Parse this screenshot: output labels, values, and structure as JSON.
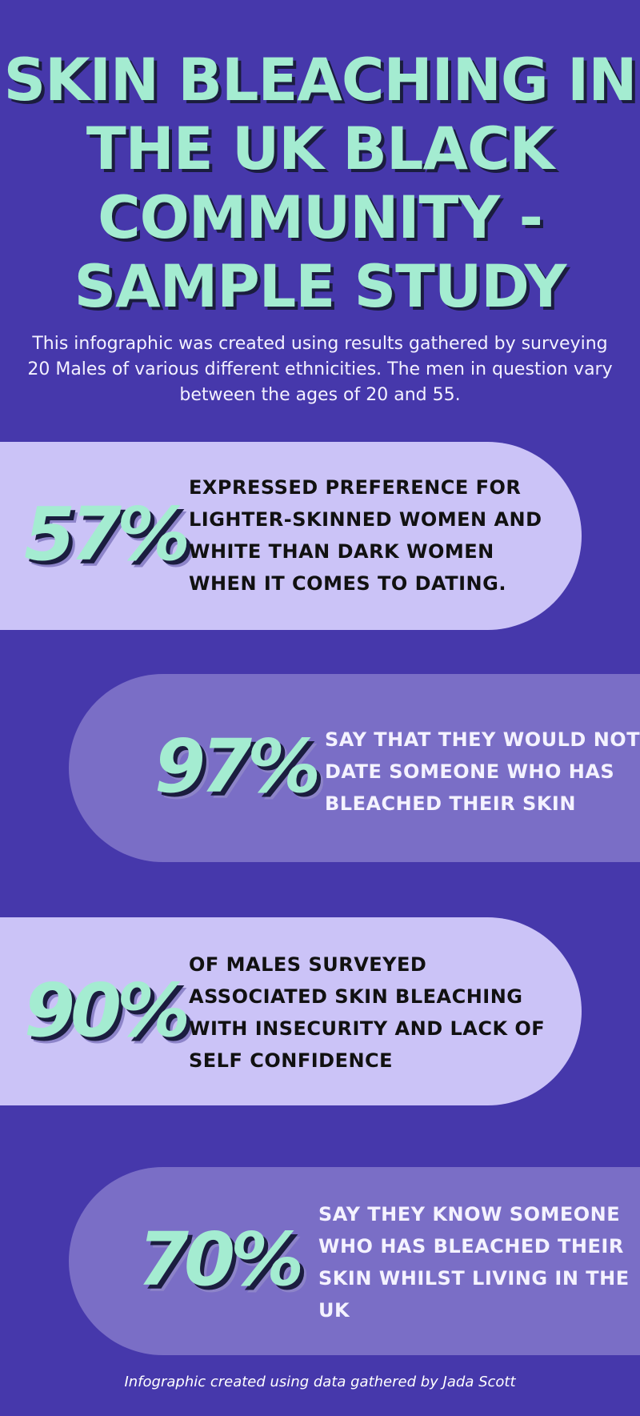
{
  "title": "SKIN BLEACHING IN THE UK BLACK COMMUNITY - SAMPLE STUDY",
  "intro": "This infographic was created using results gathered by surveying 20 Males of various different ethnicities. The men in question vary between the ages of 20 and 55.",
  "stats": [
    {
      "value": "57%",
      "lines": [
        "EXPRESSED PREFERENCE FOR",
        "LIGHTER-SKINNED WOMEN AND",
        "WHITE THAN DARK WOMEN",
        "WHEN IT COMES TO DATING."
      ]
    },
    {
      "value": "97%",
      "lines": [
        "SAY THAT THEY WOULD NOT",
        "DATE SOMEONE WHO HAS",
        "BLEACHED THEIR SKIN"
      ]
    },
    {
      "value": "90%",
      "lines": [
        "OF MALES SURVEYED",
        "ASSOCIATED SKIN BLEACHING",
        "WITH INSECURITY AND LACK OF",
        "SELF CONFIDENCE"
      ]
    },
    {
      "value": "70%",
      "lines": [
        "SAY THEY KNOW SOMEONE",
        "WHO HAS BLEACHED THEIR",
        "SKIN WHILST LIVING IN THE",
        "UK"
      ]
    }
  ],
  "footer": "Infographic created using data gathered by Jada Scott",
  "colors": {
    "background": "#4638ab",
    "accent_mint": "#a4ecd1",
    "pill_light": "#cbc3f7",
    "pill_medium": "#7a6ec6",
    "text_dark": "#111111",
    "text_light": "#f4f2ff"
  }
}
